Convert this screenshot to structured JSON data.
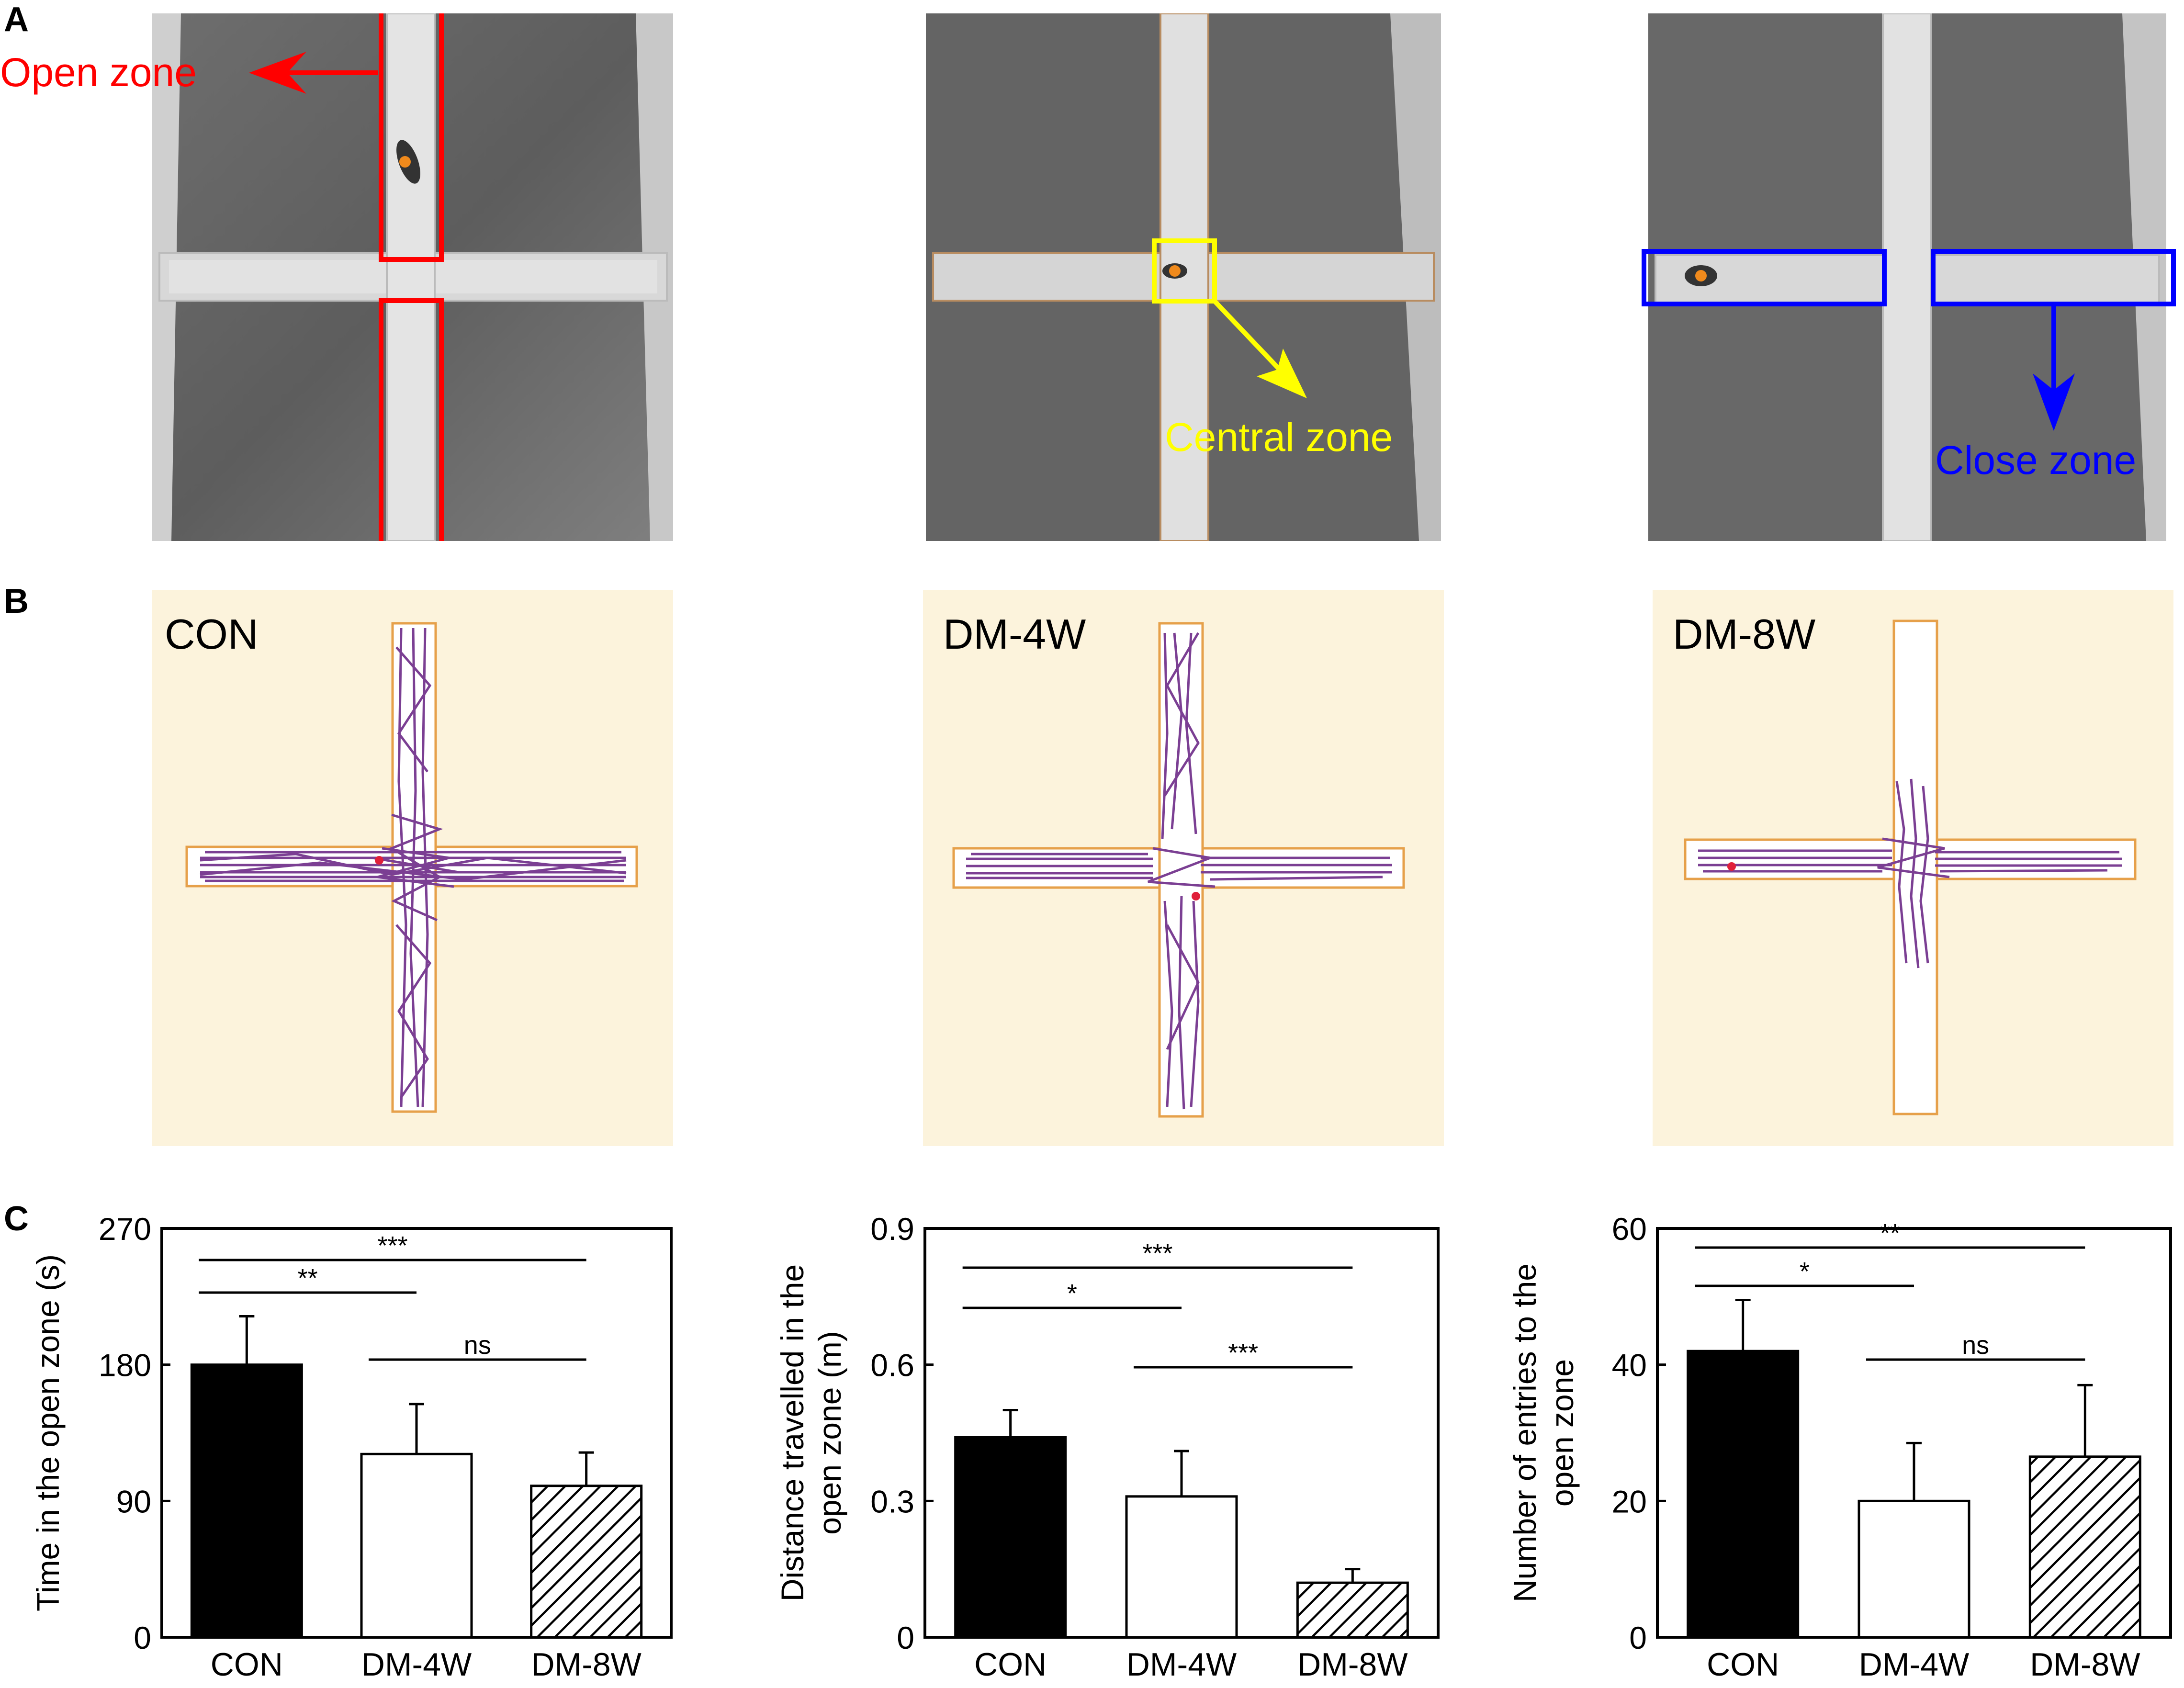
{
  "panels": {
    "a": {
      "letter": "A"
    },
    "b": {
      "letter": "B"
    },
    "c": {
      "letter": "C"
    }
  },
  "photos": [
    {
      "annotation": "Open zone",
      "annotation_color": "#ff0000"
    },
    {
      "annotation": "Central zone",
      "annotation_color": "#ffff00"
    },
    {
      "annotation": "Close zone",
      "annotation_color": "#0000ff"
    }
  ],
  "tracks": [
    {
      "label": "CON"
    },
    {
      "label": "DM-4W"
    },
    {
      "label": "DM-8W"
    }
  ],
  "colors": {
    "track_background": "#fcf3dc",
    "arena_outline": "#e6a04a",
    "path": "#7b3f93",
    "start_dot": "#e0203a",
    "bar_con": "#000000",
    "bar_dm4w": "#ffffff",
    "bar_dm8w_pattern": "hatched"
  },
  "chart_data": [
    {
      "type": "bar",
      "categories": [
        "CON",
        "DM-4W",
        "DM-8W"
      ],
      "values": [
        180,
        121,
        100
      ],
      "errors": [
        32,
        33,
        22
      ],
      "ylabel": "Time in the  open zone (s)",
      "ylim": [
        0,
        270
      ],
      "yticks": [
        "0",
        "90",
        "180",
        "270"
      ],
      "significance": [
        {
          "from": "CON",
          "to": "DM-4W",
          "label": "**"
        },
        {
          "from": "CON",
          "to": "DM-8W",
          "label": "***"
        },
        {
          "from": "DM-4W",
          "to": "DM-8W",
          "label": "ns"
        }
      ]
    },
    {
      "type": "bar",
      "categories": [
        "CON",
        "DM-4W",
        "DM-8W"
      ],
      "values": [
        0.44,
        0.31,
        0.12
      ],
      "errors": [
        0.06,
        0.1,
        0.03
      ],
      "ylabel": "Distance travelled in the open zone (m)",
      "ylabel_lines": [
        "Distance travelled in the",
        "open zone (m)"
      ],
      "ylim": [
        0,
        0.9
      ],
      "yticks": [
        "0",
        "0.3",
        "0.6",
        "0.9"
      ],
      "significance": [
        {
          "from": "CON",
          "to": "DM-4W",
          "label": "*"
        },
        {
          "from": "CON",
          "to": "DM-8W",
          "label": "***"
        },
        {
          "from": "DM-4W",
          "to": "DM-8W",
          "label": "***"
        }
      ]
    },
    {
      "type": "bar",
      "categories": [
        "CON",
        "DM-4W",
        "DM-8W"
      ],
      "values": [
        42,
        20,
        26.5
      ],
      "errors": [
        7.5,
        8.5,
        10.5
      ],
      "ylabel": "Number of entries to the open zone",
      "ylabel_lines": [
        "Number of entries to the",
        "open zone"
      ],
      "ylim": [
        0,
        60
      ],
      "yticks": [
        "0",
        "20",
        "40",
        "60"
      ],
      "significance": [
        {
          "from": "CON",
          "to": "DM-4W",
          "label": "*"
        },
        {
          "from": "CON",
          "to": "DM-8W",
          "label": "**"
        },
        {
          "from": "DM-4W",
          "to": "DM-8W",
          "label": "ns"
        }
      ]
    }
  ]
}
